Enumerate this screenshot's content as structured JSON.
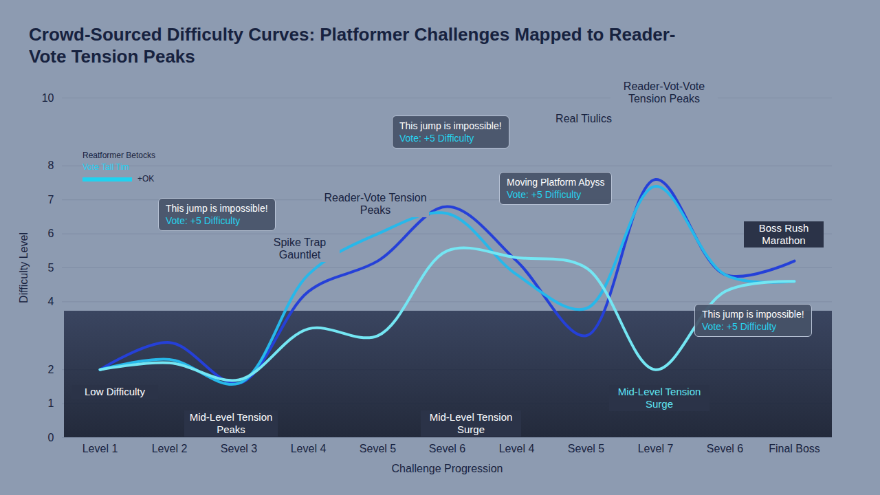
{
  "chart_data": {
    "type": "line",
    "title": "Crowd-Sourced Difficulty Curves: Platformer Challenges Mapped to Reader-Vote Tension Peaks",
    "x_label": "Challenge Progression",
    "y_label": "Difficulty Level",
    "categories": [
      "Level 1",
      "Level 2",
      "Sevel 3",
      "Level 4",
      "Sevel 5",
      "Sevel 6",
      "Level 4",
      "Sevel 5",
      "Level 7",
      "Sevel 6",
      "Final Boss"
    ],
    "ylim": [
      0,
      10
    ],
    "yticks": [
      0,
      1,
      2,
      4,
      5,
      6,
      7,
      8,
      10
    ],
    "grid": true,
    "series": [
      {
        "color": "#2540d8",
        "values": [
          2,
          2.8,
          1.6,
          4.3,
          5.2,
          6.8,
          5.2,
          3,
          7.6,
          4.8,
          5.2
        ]
      },
      {
        "color": "#27b8ea",
        "values": [
          2,
          2.3,
          1.6,
          4.8,
          6,
          6.6,
          4.8,
          3.8,
          7.4,
          4.8,
          4.6
        ]
      },
      {
        "color": "#74e6f3",
        "values": [
          2,
          2.2,
          1.7,
          3.2,
          3,
          5.5,
          5.3,
          5,
          2,
          4.3,
          4.6
        ]
      }
    ],
    "annotations": [
      [
        "Reatformer Betocks",
        "Vote Tall Tim",
        "+OK"
      ],
      [
        "This jump is impossible!",
        "Vote: +5 Difficulty"
      ],
      [
        "This jump is impossible!",
        "Vote: +5 Difficulty"
      ],
      [
        "Moving Platform Abyss",
        "Vote: +5 Difficulty"
      ],
      [
        "This jump is impossible!",
        "Vote: +5 Difficulty"
      ],
      [
        "Reader-Vote Tension Peaks"
      ],
      [
        "Reader-Vot-Vote Tension Peaks"
      ],
      [
        "Real Tiulics"
      ],
      [
        "Spike Trap Gauntlet"
      ],
      [
        "Low Difficulty"
      ],
      [
        "Mid-Level Tension Peaks"
      ],
      [
        "Mid-Level Tension Surge"
      ],
      [
        "Mid-Level Tension Surge"
      ],
      [
        "Boss Rush Marathon"
      ]
    ]
  }
}
